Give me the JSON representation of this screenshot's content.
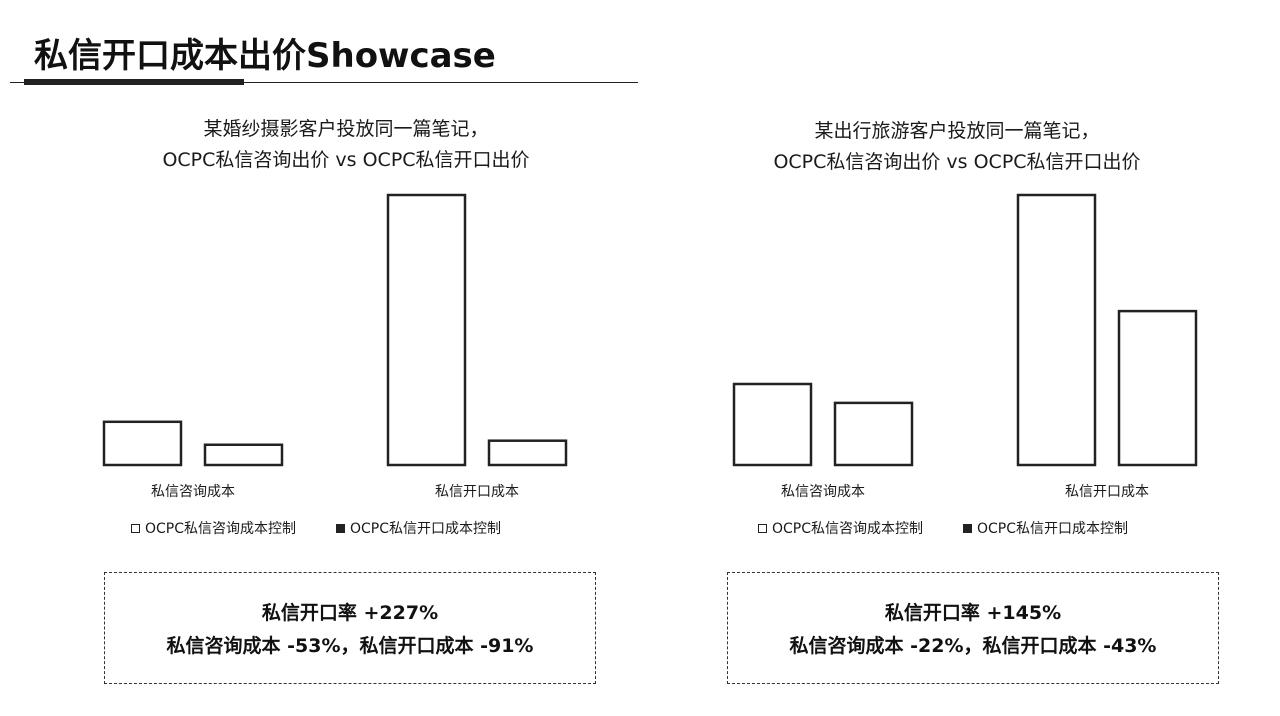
{
  "page": {
    "title": "私信开口成本出价Showcase"
  },
  "panels": [
    {
      "title_line1": "某婚纱摄影客户投放同一篇笔记，",
      "title_line2": "OCPC私信咨询出价 vs OCPC私信开口出价",
      "summary_line1": "私信开口率 +227%",
      "summary_line2": "私信咨询成本 -53%，私信开口成本 -91%"
    },
    {
      "title_line1": "某出行旅游客户投放同一篇笔记，",
      "title_line2": "OCPC私信咨询出价 vs OCPC私信开口出价",
      "summary_line1": "私信开口率 +145%",
      "summary_line2": "私信咨询成本 -22%，私信开口成本 -43%"
    }
  ],
  "chart_data": [
    {
      "type": "bar",
      "title": "某婚纱摄影客户投放同一篇笔记，OCPC私信咨询出价 vs OCPC私信开口出价",
      "categories": [
        "私信咨询成本",
        "私信开口成本"
      ],
      "series": [
        {
          "name": "OCPC私信咨询成本控制",
          "values": [
            16,
            100
          ]
        },
        {
          "name": "OCPC私信开口成本控制",
          "values": [
            7.5,
            9
          ]
        }
      ],
      "ylim": [
        0,
        100
      ],
      "axis_visible": false,
      "grid": false,
      "legend_position": "bottom"
    },
    {
      "type": "bar",
      "title": "某出行旅游客户投放同一篇笔记，OCPC私信咨询出价 vs OCPC私信开口出价",
      "categories": [
        "私信咨询成本",
        "私信开口成本"
      ],
      "series": [
        {
          "name": "OCPC私信咨询成本控制",
          "values": [
            30,
            100
          ]
        },
        {
          "name": "OCPC私信开口成本控制",
          "values": [
            23,
            57
          ]
        }
      ],
      "ylim": [
        0,
        100
      ],
      "axis_visible": false,
      "grid": false,
      "legend_position": "bottom"
    }
  ],
  "colors": {
    "bar_fill": "#ffffff",
    "bar_stroke": "#222222",
    "legend_swatch_dark": "#222222"
  }
}
